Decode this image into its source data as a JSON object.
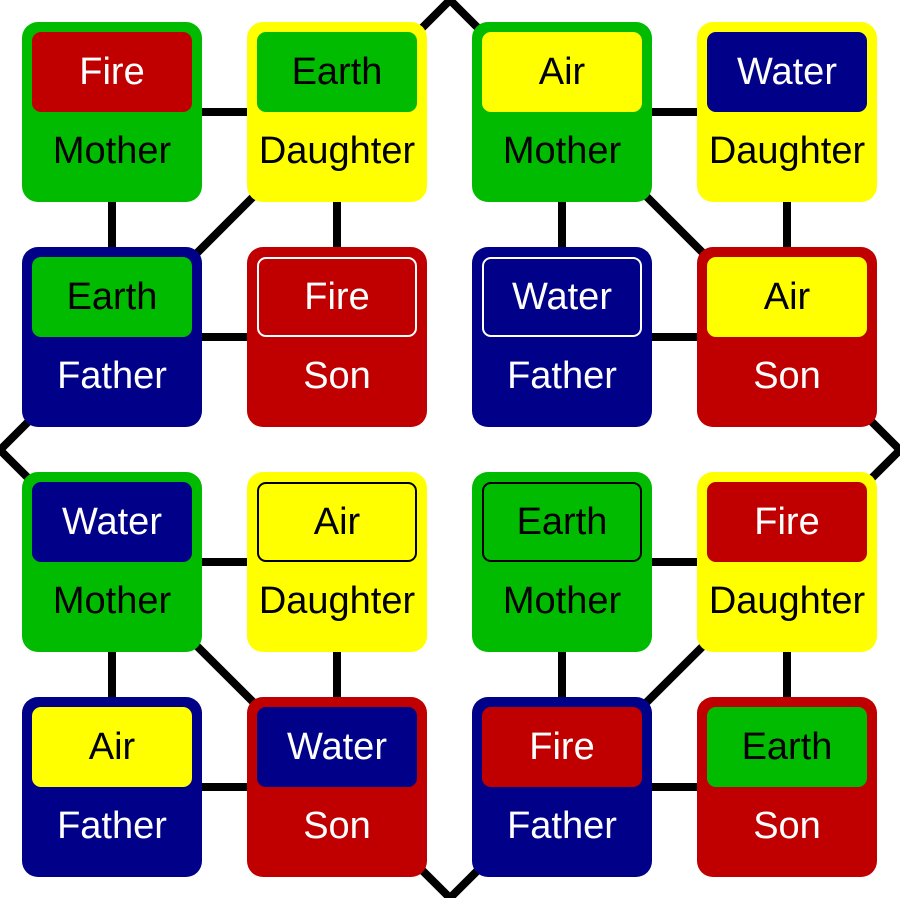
{
  "colors": {
    "Fire": "#c00000",
    "Earth": "#00bb00",
    "Air": "#ffff00",
    "Water": "#000088",
    "line": "#000000"
  },
  "text_colors": {
    "Fire": "#ffffff",
    "Earth": "#000000",
    "Air": "#000000",
    "Water": "#ffffff"
  },
  "card_colors": {
    "Mother": "#00bb00",
    "Daughter": "#ffff00",
    "Father": "#000088",
    "Son": "#c00000"
  },
  "role_text_colors": {
    "Mother": "#000000",
    "Daughter": "#000000",
    "Father": "#ffffff",
    "Son": "#ffffff"
  },
  "families": [
    {
      "members": [
        {
          "role": "Mother",
          "element": "Fire",
          "outlined": false
        },
        {
          "role": "Daughter",
          "element": "Earth",
          "outlined": false
        },
        {
          "role": "Father",
          "element": "Earth",
          "outlined": false
        },
        {
          "role": "Son",
          "element": "Fire",
          "outlined": true
        }
      ]
    },
    {
      "members": [
        {
          "role": "Mother",
          "element": "Air",
          "outlined": false
        },
        {
          "role": "Daughter",
          "element": "Water",
          "outlined": false
        },
        {
          "role": "Father",
          "element": "Water",
          "outlined": true
        },
        {
          "role": "Son",
          "element": "Air",
          "outlined": false
        }
      ]
    },
    {
      "members": [
        {
          "role": "Mother",
          "element": "Water",
          "outlined": false
        },
        {
          "role": "Daughter",
          "element": "Air",
          "outlined": true
        },
        {
          "role": "Father",
          "element": "Air",
          "outlined": false
        },
        {
          "role": "Son",
          "element": "Water",
          "outlined": false
        }
      ]
    },
    {
      "members": [
        {
          "role": "Mother",
          "element": "Earth",
          "outlined": true
        },
        {
          "role": "Daughter",
          "element": "Fire",
          "outlined": false
        },
        {
          "role": "Father",
          "element": "Fire",
          "outlined": false
        },
        {
          "role": "Son",
          "element": "Earth",
          "outlined": false
        }
      ]
    }
  ]
}
